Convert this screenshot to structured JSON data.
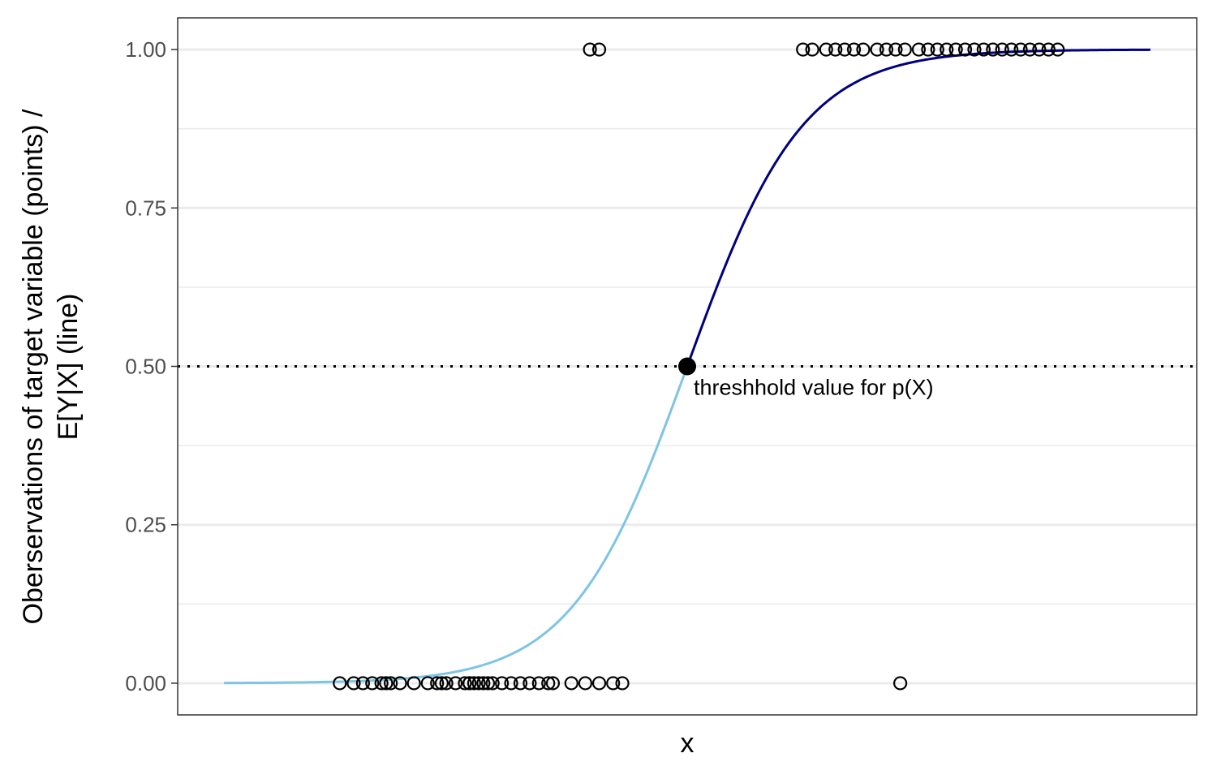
{
  "chart_data": {
    "type": "scatter",
    "xlabel": "x",
    "ylabel_lines": [
      "Oberservations of target variable (points) /",
      "E[Y|X] (line)"
    ],
    "ylim": [
      -0.05,
      1.05
    ],
    "xlim": [
      -0.5,
      21.5
    ],
    "yticks": [
      0.0,
      0.25,
      0.5,
      0.75,
      1.0
    ],
    "ytick_labels": [
      "0.00",
      "0.25",
      "0.50",
      "0.75",
      "1.00"
    ],
    "grid": true,
    "curve": {
      "x0": 10.5,
      "k": 0.8,
      "x_range": [
        0.5,
        20.5
      ],
      "color_below": "#7ec4e4",
      "color_above": "#000080"
    },
    "threshold": {
      "x": 10.5,
      "y": 0.5,
      "label": "threshhold value for p(X)"
    },
    "points_y0_x": [
      3.0,
      3.3,
      3.5,
      3.7,
      3.9,
      4.1,
      4.3,
      4.6,
      4.9,
      5.1,
      5.3,
      5.5,
      5.7,
      5.9,
      6.0,
      6.1,
      6.2,
      5.8,
      4.0,
      5.2,
      5.8,
      6.3,
      6.5,
      6.7,
      6.9,
      7.1,
      7.3,
      7.5,
      7.6,
      8.0,
      8.3,
      8.6,
      8.9,
      9.1,
      15.1
    ],
    "points_y1_x": [
      8.4,
      8.6,
      13.0,
      13.2,
      13.5,
      13.7,
      13.9,
      14.1,
      14.3,
      14.6,
      14.8,
      15.0,
      15.2,
      15.5,
      15.7,
      15.9,
      16.1,
      16.3,
      16.5,
      16.7,
      16.9,
      17.1,
      17.3,
      17.5,
      17.7,
      17.9,
      18.1,
      18.3,
      18.5
    ],
    "colors": {
      "grid": "#ebebeb",
      "axis": "#333333",
      "point": "#000000"
    }
  }
}
